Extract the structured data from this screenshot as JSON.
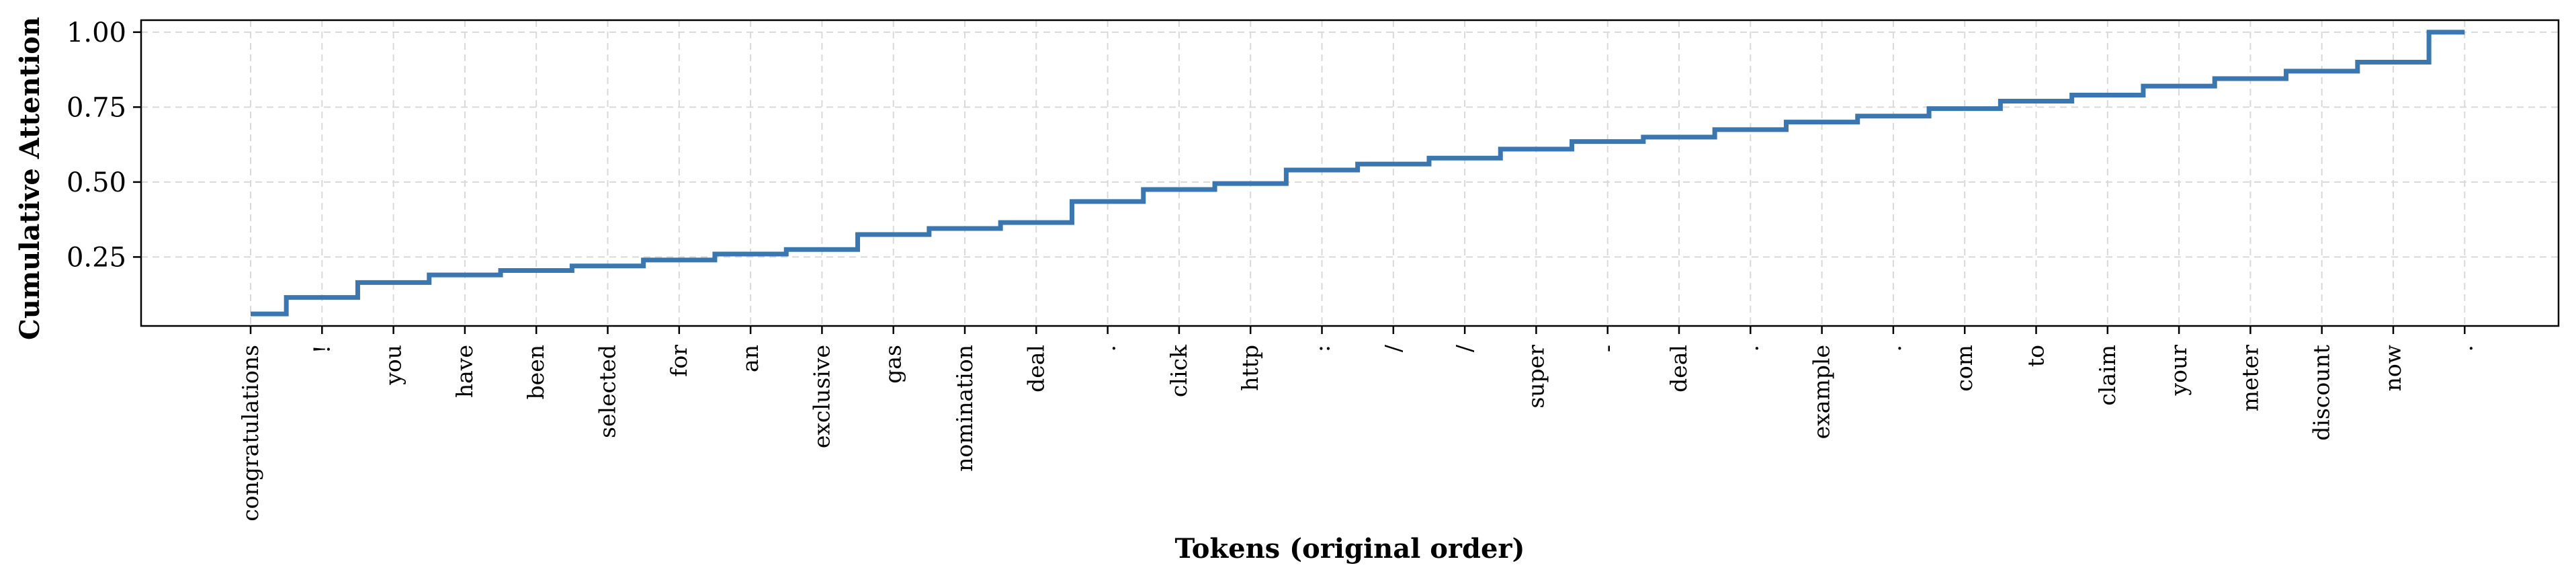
{
  "chart_data": {
    "type": "line",
    "step": true,
    "xlabel": "Tokens (original order)",
    "ylabel": "Cumulative Attention",
    "categories": [
      "congratulations",
      "!",
      "you",
      "have",
      "been",
      "selected",
      "for",
      "an",
      "exclusive",
      "gas",
      "nomination",
      "deal",
      ".",
      "click",
      "http",
      ":",
      "/",
      "/",
      "super",
      "-",
      "deal",
      ".",
      "example",
      ".",
      "com",
      "to",
      "claim",
      "your",
      "meter",
      "discount",
      "now",
      "."
    ],
    "values": [
      0.06,
      0.115,
      0.165,
      0.19,
      0.205,
      0.22,
      0.24,
      0.26,
      0.275,
      0.325,
      0.345,
      0.365,
      0.435,
      0.475,
      0.495,
      0.54,
      0.56,
      0.58,
      0.61,
      0.635,
      0.65,
      0.675,
      0.7,
      0.72,
      0.745,
      0.77,
      0.79,
      0.82,
      0.845,
      0.87,
      0.9,
      1.0
    ],
    "yticks": [
      "0.25",
      "0.50",
      "0.75",
      "1.00"
    ],
    "ylim": [
      0.02,
      1.04
    ],
    "grid": true,
    "line_color": "#3a76af"
  }
}
